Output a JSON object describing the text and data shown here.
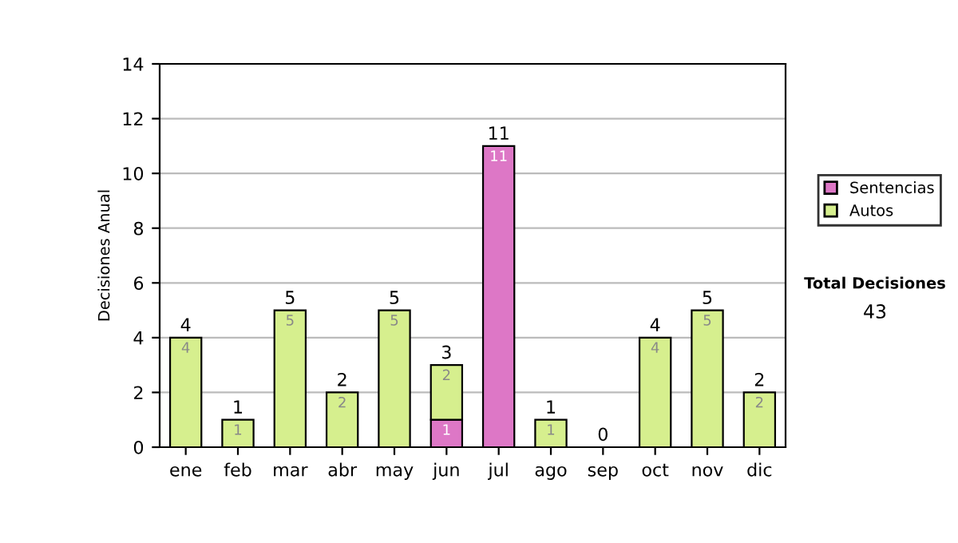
{
  "chart_data": {
    "type": "bar",
    "stacked": true,
    "ylabel": "Decisiones Anual",
    "categories": [
      "ene",
      "feb",
      "mar",
      "abr",
      "may",
      "jun",
      "jul",
      "ago",
      "sep",
      "oct",
      "nov",
      "dic"
    ],
    "series": [
      {
        "name": "Sentencias",
        "color": "#dd77c6",
        "values": [
          0,
          0,
          0,
          0,
          0,
          1,
          11,
          0,
          0,
          0,
          0,
          0
        ],
        "value_labels": [
          null,
          null,
          null,
          null,
          null,
          "1",
          "11",
          null,
          null,
          null,
          null,
          null
        ]
      },
      {
        "name": "Autos",
        "color": "#d6ef8e",
        "values": [
          4,
          1,
          5,
          2,
          5,
          2,
          0,
          1,
          0,
          4,
          5,
          2
        ],
        "value_labels": [
          "4",
          "1",
          "5",
          "2",
          "5",
          "2",
          null,
          "1",
          null,
          "4",
          "5",
          "2"
        ]
      }
    ],
    "totals": [
      "4",
      "1",
      "5",
      "2",
      "5",
      "3",
      "11",
      "1",
      "0",
      "4",
      "5",
      "2"
    ],
    "ylim": [
      0,
      14
    ],
    "yticks": [
      0,
      2,
      4,
      6,
      8,
      10,
      12,
      14
    ],
    "grid": "y",
    "legend": "right",
    "annotations": [
      "Total Decisiones",
      "43"
    ]
  }
}
